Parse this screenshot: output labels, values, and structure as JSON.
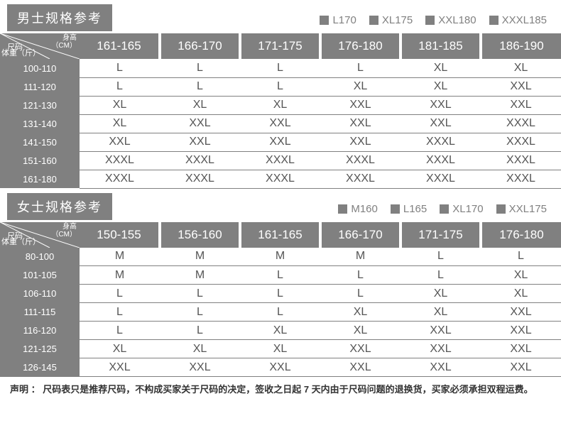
{
  "male": {
    "title": "男士规格参考",
    "legend": [
      "L170",
      "XL175",
      "XXL180",
      "XXXL185"
    ],
    "corner": {
      "top1": "身高",
      "top2": "（CM）",
      "mid": "尺码",
      "bot": "体重（斤）"
    },
    "columns": [
      "161-165",
      "166-170",
      "171-175",
      "176-180",
      "181-185",
      "186-190"
    ],
    "rows": [
      {
        "label": "100-110",
        "cells": [
          "L",
          "L",
          "L",
          "L",
          "XL",
          "XL"
        ]
      },
      {
        "label": "111-120",
        "cells": [
          "L",
          "L",
          "L",
          "XL",
          "XL",
          "XXL"
        ]
      },
      {
        "label": "121-130",
        "cells": [
          "XL",
          "XL",
          "XL",
          "XXL",
          "XXL",
          "XXL"
        ]
      },
      {
        "label": "131-140",
        "cells": [
          "XL",
          "XXL",
          "XXL",
          "XXL",
          "XXL",
          "XXXL"
        ]
      },
      {
        "label": "141-150",
        "cells": [
          "XXL",
          "XXL",
          "XXL",
          "XXL",
          "XXXL",
          "XXXL"
        ]
      },
      {
        "label": "151-160",
        "cells": [
          "XXXL",
          "XXXL",
          "XXXL",
          "XXXL",
          "XXXL",
          "XXXL"
        ]
      },
      {
        "label": "161-180",
        "cells": [
          "XXXL",
          "XXXL",
          "XXXL",
          "XXXL",
          "XXXL",
          "XXXL"
        ]
      }
    ]
  },
  "female": {
    "title": "女士规格参考",
    "legend": [
      "M160",
      "L165",
      "XL170",
      "XXL175"
    ],
    "corner": {
      "top1": "身高",
      "top2": "（CM）",
      "mid": "尺码",
      "bot": "体重（斤）"
    },
    "columns": [
      "150-155",
      "156-160",
      "161-165",
      "166-170",
      "171-175",
      "176-180"
    ],
    "rows": [
      {
        "label": "80-100",
        "cells": [
          "M",
          "M",
          "M",
          "M",
          "L",
          "L"
        ]
      },
      {
        "label": "101-105",
        "cells": [
          "M",
          "M",
          "L",
          "L",
          "L",
          "XL"
        ]
      },
      {
        "label": "106-110",
        "cells": [
          "L",
          "L",
          "L",
          "L",
          "XL",
          "XL"
        ]
      },
      {
        "label": "111-115",
        "cells": [
          "L",
          "L",
          "L",
          "XL",
          "XL",
          "XXL"
        ]
      },
      {
        "label": "116-120",
        "cells": [
          "L",
          "L",
          "XL",
          "XL",
          "XXL",
          "XXL"
        ]
      },
      {
        "label": "121-125",
        "cells": [
          "XL",
          "XL",
          "XL",
          "XXL",
          "XXL",
          "XXL"
        ]
      },
      {
        "label": "126-145",
        "cells": [
          "XXL",
          "XXL",
          "XXL",
          "XXL",
          "XXL",
          "XXL"
        ]
      }
    ]
  },
  "disclaimer": "声明 ： 尺码表只是推荐尺码，不构成买家关于尺码的决定，签收之日起 7 天内由于尺码问题的退换货，买家必须承担双程运费。",
  "colors": {
    "header_bg": "#808080",
    "text_dark": "#555555",
    "border": "#808080"
  }
}
